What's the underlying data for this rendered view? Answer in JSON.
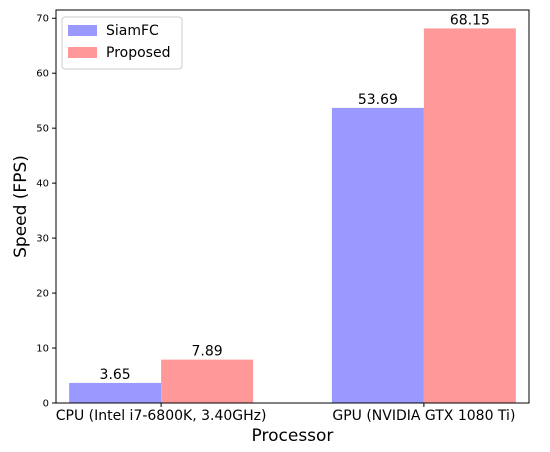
{
  "chart_data": {
    "type": "bar",
    "title": "",
    "xlabel": "Processor",
    "ylabel": "Speed (FPS)",
    "categories": [
      "CPU (Intel i7-6800K, 3.40GHz)",
      "GPU (NVIDIA GTX 1080 Ti)"
    ],
    "series": [
      {
        "name": "SiamFC",
        "values": [
          3.65,
          53.69
        ],
        "labels": [
          "3.65",
          "53.69"
        ],
        "color": "#9999ff"
      },
      {
        "name": "Proposed",
        "values": [
          7.89,
          68.15
        ],
        "labels": [
          "7.89",
          "68.15"
        ],
        "color": "#ff9999"
      }
    ],
    "ylim": [
      0,
      71.5
    ],
    "yticks": [
      0,
      10,
      20,
      30,
      40,
      50,
      60,
      70
    ],
    "ytick_labels": [
      "0",
      "10",
      "20",
      "30",
      "40",
      "50",
      "60",
      "70"
    ],
    "grid": false,
    "legend_position": "top-left"
  }
}
